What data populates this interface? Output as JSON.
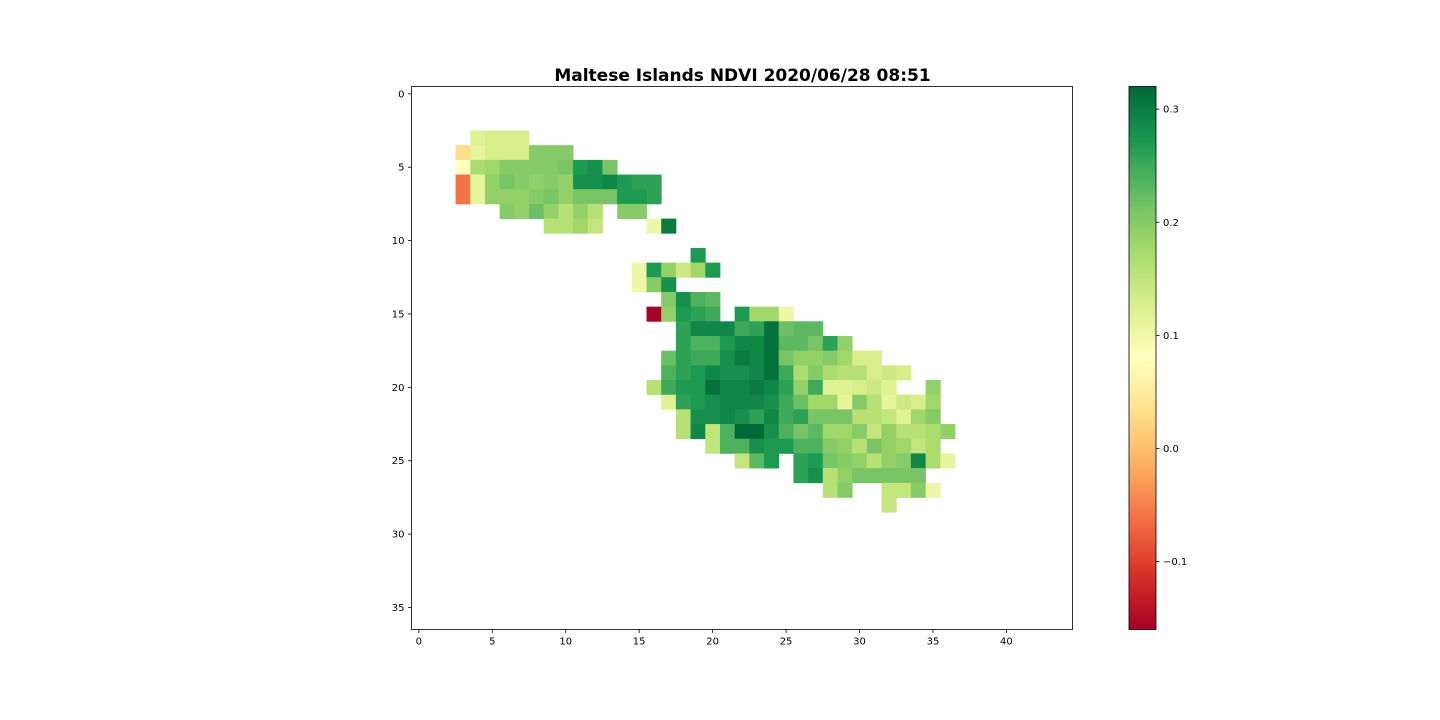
{
  "chart_data": {
    "type": "heatmap",
    "title": "Maltese Islands NDVI 2020/06/28 08:51",
    "xlabel": "",
    "ylabel": "",
    "grid": false,
    "xlim": [
      -0.5,
      44.5
    ],
    "ylim": [
      36.5,
      -0.5
    ],
    "x_ticks": [
      0,
      5,
      10,
      15,
      20,
      25,
      30,
      35,
      40
    ],
    "y_ticks": [
      0,
      5,
      10,
      15,
      20,
      25,
      30,
      35
    ],
    "colormap": "RdYlGn",
    "colorbar": {
      "vmin": -0.16,
      "vmax": 0.32,
      "ticks": [
        -0.1,
        0.0,
        0.1,
        0.2,
        0.3
      ],
      "tick_labels": [
        "−0.1",
        "0.0",
        "0.1",
        "0.2",
        "0.3"
      ]
    },
    "rows": [
      {
        "y": 3,
        "x0": 4,
        "values": [
          0.12,
          0.13,
          0.13,
          0.13
        ]
      },
      {
        "y": 4,
        "x0": 3,
        "values": [
          0.03,
          0.11,
          0.13,
          0.13,
          0.13,
          0.2,
          0.2,
          0.2
        ]
      },
      {
        "y": 5,
        "x0": 3,
        "values": [
          0.08,
          0.17,
          0.18,
          0.2,
          0.2,
          0.2,
          0.2,
          0.21,
          0.27,
          0.28,
          0.21
        ]
      },
      {
        "y": 6,
        "x0": 3,
        "values": [
          -0.06,
          0.11,
          0.19,
          0.21,
          0.2,
          0.19,
          0.2,
          0.19,
          0.28,
          0.28,
          0.29,
          0.27,
          0.26,
          0.26
        ]
      },
      {
        "y": 7,
        "x0": 3,
        "values": [
          -0.06,
          0.11,
          0.19,
          0.19,
          0.19,
          0.2,
          0.21,
          0.19,
          0.21,
          0.21,
          0.21,
          0.27,
          0.27,
          0.26
        ]
      },
      {
        "y": 8,
        "x0": 6,
        "values": [
          0.2,
          0.19,
          0.22,
          0.19,
          0.16,
          0.19,
          0.16,
          null,
          0.2,
          0.2
        ]
      },
      {
        "y": 9,
        "x0": 9,
        "values": [
          0.16,
          0.16,
          0.18,
          0.15,
          null,
          null,
          null,
          0.1,
          0.3
        ]
      },
      {
        "y": 11,
        "x0": 19,
        "values": [
          0.27
        ]
      },
      {
        "y": 12,
        "x0": 15,
        "values": [
          0.1,
          0.27,
          0.19,
          0.14,
          0.18,
          0.27
        ]
      },
      {
        "y": 13,
        "x0": 15,
        "values": [
          0.1,
          0.2,
          0.28
        ]
      },
      {
        "y": 14,
        "x0": 17,
        "values": [
          0.2,
          0.28,
          0.24,
          0.23
        ]
      },
      {
        "y": 15,
        "x0": 16,
        "values": [
          -0.16,
          0.19,
          0.27,
          0.26,
          0.25,
          null,
          0.27,
          0.18,
          0.18,
          0.1
        ]
      },
      {
        "y": 16,
        "x0": 18,
        "values": [
          0.26,
          0.29,
          0.29,
          0.29,
          0.25,
          0.26,
          0.31,
          0.22,
          0.23,
          0.23
        ]
      },
      {
        "y": 17,
        "x0": 18,
        "values": [
          0.26,
          0.24,
          0.24,
          0.27,
          0.29,
          0.29,
          0.31,
          0.23,
          0.23,
          0.21,
          0.26,
          0.19
        ]
      },
      {
        "y": 18,
        "x0": 17,
        "values": [
          0.22,
          0.26,
          0.25,
          0.25,
          0.28,
          0.3,
          0.29,
          0.31,
          0.21,
          0.19,
          0.19,
          0.2,
          0.18,
          0.13,
          0.13
        ]
      },
      {
        "y": 19,
        "x0": 17,
        "values": [
          0.24,
          0.26,
          0.27,
          0.29,
          0.28,
          0.28,
          0.29,
          0.31,
          0.25,
          0.17,
          0.2,
          0.17,
          0.16,
          0.16,
          0.13,
          0.14,
          0.13
        ]
      },
      {
        "y": 20,
        "x0": 16,
        "values": [
          0.16,
          0.25,
          0.27,
          0.27,
          0.31,
          0.29,
          0.29,
          0.3,
          0.29,
          0.26,
          0.19,
          0.25,
          0.12,
          0.12,
          0.13,
          0.14,
          0.12,
          null,
          null,
          0.19
        ]
      },
      {
        "y": 21,
        "x0": 17,
        "values": [
          0.12,
          0.26,
          0.27,
          0.28,
          0.29,
          0.29,
          0.29,
          0.28,
          0.25,
          0.22,
          0.18,
          0.18,
          0.11,
          0.2,
          0.16,
          0.11,
          0.14,
          0.13,
          0.18
        ]
      },
      {
        "y": 22,
        "x0": 18,
        "values": [
          0.16,
          0.28,
          0.28,
          0.29,
          0.28,
          0.26,
          0.29,
          0.25,
          0.26,
          0.21,
          0.21,
          0.21,
          0.16,
          0.16,
          0.15,
          0.12,
          0.18,
          0.2
        ]
      },
      {
        "y": 23,
        "x0": 18,
        "values": [
          0.16,
          0.29,
          0.15,
          0.24,
          0.32,
          0.32,
          0.28,
          0.24,
          0.21,
          0.23,
          0.18,
          0.18,
          0.2,
          0.15,
          0.19,
          0.16,
          0.16,
          0.17,
          0.19
        ]
      },
      {
        "y": 24,
        "x0": 20,
        "values": [
          0.15,
          0.24,
          0.24,
          0.28,
          0.27,
          0.27,
          0.24,
          0.24,
          0.2,
          0.19,
          0.16,
          0.21,
          0.19,
          0.18,
          0.15,
          0.17
        ]
      },
      {
        "y": 25,
        "x0": 22,
        "values": [
          0.15,
          0.23,
          0.27,
          null,
          0.26,
          0.27,
          0.21,
          0.2,
          0.19,
          0.16,
          0.19,
          0.2,
          0.29,
          0.17,
          0.11
        ]
      },
      {
        "y": 26,
        "x0": 26,
        "values": [
          0.26,
          0.28,
          0.16,
          0.19,
          0.21,
          0.21,
          0.21,
          0.21,
          0.21
        ]
      },
      {
        "y": 27,
        "x0": 28,
        "values": [
          0.16,
          0.2,
          null,
          null,
          0.15,
          0.15,
          0.2,
          0.1
        ]
      },
      {
        "y": 28,
        "x0": 32,
        "values": [
          0.15
        ]
      }
    ]
  }
}
